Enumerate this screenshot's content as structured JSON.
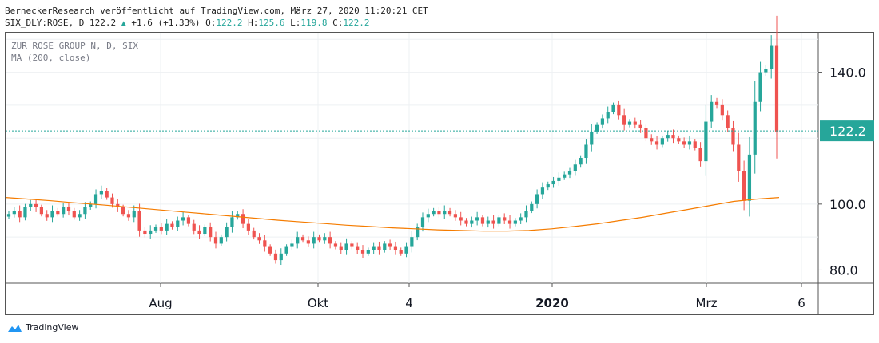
{
  "header": {
    "line1": "BerneckerResearch veröffentlicht auf TradingView.com, März 27, 2020 11:20:21 CET",
    "symbol": "SIX_DLY:ROSE, D",
    "last": "122.2",
    "change": "+1.6 (+1.33%)",
    "ohlc_o_label": "O:",
    "ohlc_o": "122.2",
    "ohlc_h_label": "H:",
    "ohlc_h": "125.6",
    "ohlc_l_label": "L:",
    "ohlc_l": "119.8",
    "ohlc_c_label": "C:",
    "ohlc_c": "122.2"
  },
  "legend": {
    "symbol": "ZUR ROSE GROUP N, D, SIX",
    "ma": "MA (200, close)"
  },
  "brand": {
    "name": "TradingView"
  },
  "colors": {
    "up": "#26a69a",
    "down": "#ef5350",
    "ma": "#f57c00",
    "last_line": "#26a69a"
  },
  "chart_data": {
    "type": "candlestick",
    "x_labels": [
      "Aug",
      "Okt",
      "4",
      "2020",
      "Mrz",
      "6"
    ],
    "y_ticks": [
      80.0,
      100.0,
      140.0
    ],
    "y_tick_labels": [
      "80.0",
      "100.0",
      "140.0"
    ],
    "last_price_label": "122.2",
    "last_price": 122.2,
    "ylim": [
      76,
      152
    ],
    "series": [
      {
        "name": "ZUR ROSE GROUP N, D, SIX",
        "kind": "close",
        "values": [
          97,
          98,
          96,
          99,
          100,
          99,
          97,
          96,
          98,
          97,
          99,
          98,
          96,
          97,
          99,
          100,
          103,
          104,
          102,
          100,
          99,
          97,
          96,
          98,
          92,
          91,
          92,
          93,
          92,
          94,
          93,
          95,
          96,
          94,
          92,
          91,
          93,
          90,
          88,
          90,
          93,
          96,
          97,
          94,
          92,
          90,
          89,
          87,
          85,
          83,
          85,
          87,
          88,
          90,
          89,
          88,
          90,
          89,
          90,
          88,
          87,
          86,
          88,
          87,
          86,
          85,
          86,
          87,
          86,
          88,
          87,
          86,
          85,
          87,
          90,
          93,
          96,
          97,
          98,
          97,
          98,
          97,
          96,
          95,
          94,
          95,
          96,
          94,
          95,
          94,
          96,
          95,
          94,
          95,
          96,
          98,
          100,
          103,
          105,
          106,
          107,
          108,
          109,
          110,
          112,
          114,
          118,
          122,
          124,
          126,
          128,
          130,
          127,
          124,
          125,
          124,
          123,
          120,
          119,
          118,
          120,
          121,
          120,
          119,
          118,
          119,
          117,
          113,
          125,
          131,
          130,
          127,
          123,
          118,
          110,
          101,
          115,
          131,
          140,
          141,
          148,
          122
        ]
      },
      {
        "name": "MA (200, close)",
        "kind": "ma",
        "values": [
          102,
          101.5,
          101,
          100.4,
          99.9,
          99.3,
          98.7,
          98.1,
          97.5,
          96.9,
          96.3,
          95.7,
          95.1,
          94.6,
          94.1,
          93.6,
          93.2,
          92.8,
          92.5,
          92.2,
          92.0,
          91.8,
          91.8,
          92.0,
          92.5,
          93.2,
          94.0,
          95.0,
          96.0,
          97.2,
          98.4,
          99.6,
          100.8,
          101.5,
          102.0
        ]
      }
    ]
  }
}
